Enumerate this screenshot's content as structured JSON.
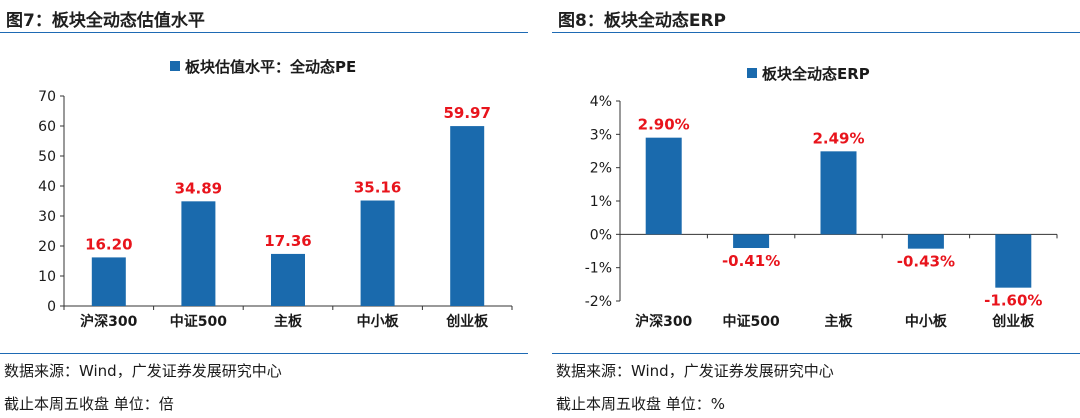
{
  "chart_data": [
    {
      "type": "bar",
      "figure_title": "图7：板块全动态估值水平",
      "legend": "板块估值水平：全动态PE",
      "categories": [
        "沪深300",
        "中证500",
        "主板",
        "中小板",
        "创业板"
      ],
      "values": [
        16.2,
        34.89,
        17.36,
        35.16,
        59.97
      ],
      "value_labels": [
        "16.20",
        "34.89",
        "17.36",
        "35.16",
        "59.97"
      ],
      "ylim": [
        0,
        70
      ],
      "yticks": [
        0,
        10,
        20,
        30,
        40,
        50,
        60,
        70
      ],
      "ytick_labels": [
        "0",
        "10",
        "20",
        "30",
        "40",
        "50",
        "60",
        "70"
      ],
      "source": "数据来源：Wind，广发证券发展研究中心",
      "unit_note": "截止本周五收盘 单位：倍",
      "bar_color": "#1a6aad",
      "label_color": "#e8141c"
    },
    {
      "type": "bar",
      "figure_title": "图8：板块全动态ERP",
      "legend": "板块全动态ERP",
      "categories": [
        "沪深300",
        "中证500",
        "主板",
        "中小板",
        "创业板"
      ],
      "values": [
        2.9,
        -0.41,
        2.49,
        -0.43,
        -1.6
      ],
      "value_labels": [
        "2.90%",
        "-0.41%",
        "2.49%",
        "-0.43%",
        "-1.60%"
      ],
      "ylim": [
        -2,
        4
      ],
      "yticks": [
        -2,
        -1,
        0,
        1,
        2,
        3,
        4
      ],
      "ytick_labels": [
        "-2%",
        "-1%",
        "0%",
        "1%",
        "2%",
        "3%",
        "4%"
      ],
      "source": "数据来源：Wind，广发证券发展研究中心",
      "unit_note": "截止本周五收盘 单位：%",
      "bar_color": "#1a6aad",
      "label_color": "#e8141c"
    }
  ]
}
